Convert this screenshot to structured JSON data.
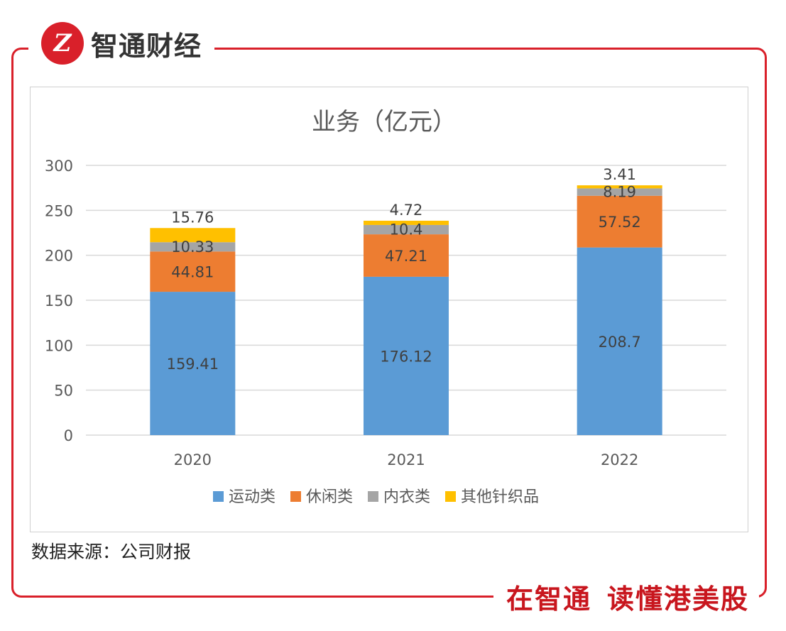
{
  "brand": {
    "logo_mark": "Z",
    "name": "智通财经"
  },
  "slogan": {
    "part1": "在智通",
    "part2": "读懂港美股"
  },
  "source": "数据来源：公司财报",
  "colors": {
    "frame": "#d9202a",
    "series": [
      "#5b9bd5",
      "#ed7d31",
      "#a5a5a5",
      "#ffc000"
    ]
  },
  "chart_data": {
    "type": "bar",
    "stacked": true,
    "title": "业务（亿元）",
    "categories": [
      "2020",
      "2021",
      "2022"
    ],
    "series": [
      {
        "name": "运动类",
        "values": [
          159.41,
          176.12,
          208.7
        ]
      },
      {
        "name": "休闲类",
        "values": [
          44.81,
          47.21,
          57.52
        ]
      },
      {
        "name": "内衣类",
        "values": [
          10.33,
          10.4,
          8.19
        ]
      },
      {
        "name": "其他针织品",
        "values": [
          15.76,
          4.72,
          3.41
        ]
      }
    ],
    "data_labels": [
      [
        "159.41",
        "176.12",
        "208.7"
      ],
      [
        "44.81",
        "47.21",
        "57.52"
      ],
      [
        "10.33",
        "10.4",
        "8.19"
      ],
      [
        "15.76",
        "4.72",
        "3.41"
      ]
    ],
    "yticks": [
      "0",
      "50",
      "100",
      "150",
      "200",
      "250",
      "300"
    ],
    "ylim": [
      0,
      300
    ],
    "grid": true,
    "legend": "bottom"
  }
}
